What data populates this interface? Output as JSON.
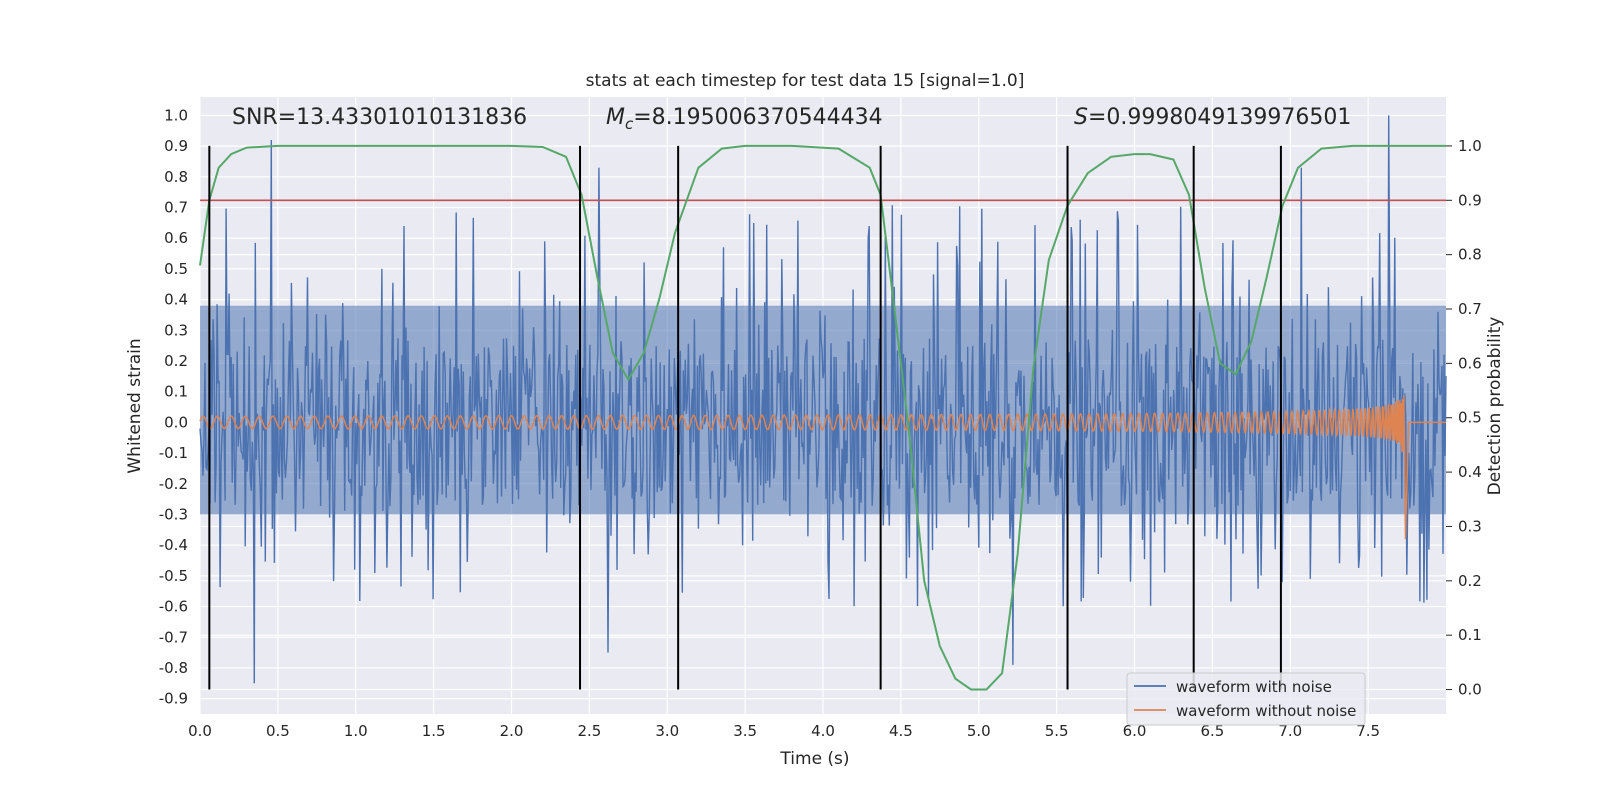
{
  "chart_data": {
    "type": "line",
    "title": "stats at each timestep for test data 15 [signal=1.0]",
    "xlabel": "Time (s)",
    "ylabel": "Whitened strain",
    "y2label": "Detection probability",
    "xlim": [
      0.0,
      8.0
    ],
    "ylim": [
      -0.95,
      1.06
    ],
    "y2lim": [
      -0.045,
      1.09
    ],
    "xticks": [
      "0.0",
      "0.5",
      "1.0",
      "1.5",
      "2.0",
      "2.5",
      "3.0",
      "3.5",
      "4.0",
      "4.5",
      "5.0",
      "5.5",
      "6.0",
      "6.5",
      "7.0",
      "7.5"
    ],
    "yticks": [
      "1.0",
      "0.9",
      "0.8",
      "0.7",
      "0.6",
      "0.5",
      "0.4",
      "0.3",
      "0.2",
      "0.1",
      "0.0",
      "-0.1",
      "-0.2",
      "-0.3",
      "-0.4",
      "-0.5",
      "-0.6",
      "-0.7",
      "-0.8",
      "-0.9"
    ],
    "y2ticks": [
      "1.0",
      "0.9",
      "0.8",
      "0.7",
      "0.6",
      "0.5",
      "0.4",
      "0.3",
      "0.2",
      "0.1",
      "0.0"
    ],
    "grid": true,
    "legend": {
      "position": "lower-right",
      "entries": [
        {
          "name": "waveform with noise",
          "color": "#4c72b0"
        },
        {
          "name": "waveform without noise",
          "color": "#dd8452"
        }
      ]
    },
    "annotations": {
      "snr": "SNR=13.43301010131836",
      "mc_symbol": "M",
      "mc_sub": "c",
      "mc_value": "=8.195006370544434",
      "s_symbol": "S",
      "s_value": "=0.9998049139976501"
    },
    "noise_envelope": {
      "name": "waveform with noise",
      "color": "#4c72b0",
      "typical_range": [
        -0.3,
        0.38
      ],
      "peaks": [
        {
          "t": 0.46,
          "v": 0.92
        },
        {
          "t": 2.56,
          "v": 0.83
        },
        {
          "t": 7.63,
          "v": 1.0
        },
        {
          "t": 7.07,
          "v": 0.83
        },
        {
          "t": 0.35,
          "v": -0.85
        },
        {
          "t": 2.62,
          "v": -0.75
        },
        {
          "t": 5.22,
          "v": -0.79
        }
      ]
    },
    "chirp": {
      "name": "waveform without noise",
      "color": "#dd8452",
      "amplitude_start": 0.02,
      "amplitude_peak": 0.3,
      "t_merge": 7.73
    },
    "detection_probability": {
      "color": "#55a868",
      "x": [
        0.0,
        0.06,
        0.12,
        0.2,
        0.3,
        0.5,
        1.0,
        1.5,
        2.0,
        2.2,
        2.35,
        2.45,
        2.55,
        2.65,
        2.75,
        2.85,
        2.95,
        3.05,
        3.2,
        3.35,
        3.5,
        3.8,
        4.1,
        4.3,
        4.37,
        4.45,
        4.55,
        4.65,
        4.75,
        4.85,
        4.95,
        5.05,
        5.15,
        5.25,
        5.35,
        5.45,
        5.57,
        5.7,
        5.85,
        6.0,
        6.1,
        6.25,
        6.35,
        6.45,
        6.55,
        6.65,
        6.75,
        6.85,
        6.95,
        7.05,
        7.2,
        7.4,
        7.6,
        7.8,
        8.0
      ],
      "y": [
        0.78,
        0.9,
        0.96,
        0.985,
        0.997,
        1.0,
        1.0,
        1.0,
        1.0,
        0.998,
        0.98,
        0.91,
        0.76,
        0.62,
        0.57,
        0.62,
        0.72,
        0.84,
        0.96,
        0.995,
        1.0,
        1.0,
        0.995,
        0.96,
        0.91,
        0.72,
        0.48,
        0.2,
        0.08,
        0.02,
        0.0,
        0.0,
        0.03,
        0.25,
        0.59,
        0.79,
        0.89,
        0.95,
        0.98,
        0.985,
        0.985,
        0.975,
        0.91,
        0.74,
        0.6,
        0.58,
        0.64,
        0.76,
        0.89,
        0.96,
        0.995,
        1.0,
        1.0,
        1.0,
        1.0
      ]
    },
    "threshold": {
      "value": 0.9,
      "color": "#c44e52"
    },
    "vertical_markers": [
      0.06,
      2.44,
      3.07,
      4.37,
      5.57,
      6.38,
      6.94
    ]
  }
}
